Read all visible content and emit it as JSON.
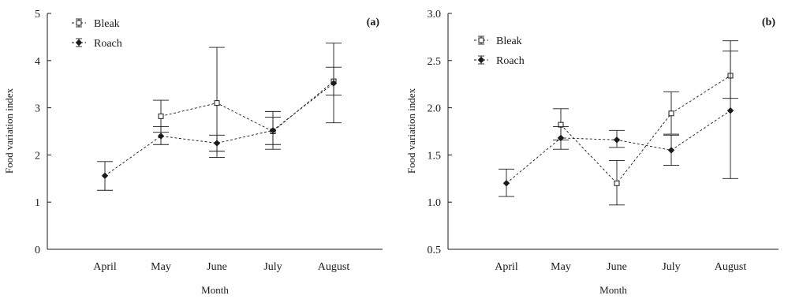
{
  "chart_data": [
    {
      "type": "line",
      "panel_label": "(a)",
      "xlabel": "Month",
      "ylabel": "Food variation index",
      "categories": [
        "April",
        "May",
        "June",
        "July",
        "August"
      ],
      "ylim": [
        0,
        5
      ],
      "yticks": [
        "0",
        "1",
        "2",
        "3",
        "4",
        "5"
      ],
      "grid": false,
      "legend_position": "top-left",
      "series": [
        {
          "name": "Bleak",
          "marker": "open-square",
          "x": [
            "May",
            "June",
            "July",
            "August"
          ],
          "values": [
            2.82,
            3.1,
            2.5,
            3.56
          ],
          "err_low": [
            2.48,
            1.95,
            2.22,
            3.27
          ],
          "err_high": [
            3.16,
            4.28,
            2.8,
            3.86
          ]
        },
        {
          "name": "Roach",
          "marker": "filled-diamond",
          "x": [
            "April",
            "May",
            "June",
            "July",
            "August"
          ],
          "values": [
            1.56,
            2.4,
            2.25,
            2.52,
            3.52
          ],
          "err_low": [
            1.25,
            2.22,
            2.08,
            2.12,
            2.68
          ],
          "err_high": [
            1.86,
            2.6,
            2.42,
            2.92,
            4.37
          ]
        }
      ]
    },
    {
      "type": "line",
      "panel_label": "(b)",
      "xlabel": "Month",
      "ylabel": "Food variation index",
      "categories": [
        "April",
        "May",
        "June",
        "July",
        "August"
      ],
      "ylim": [
        0.5,
        3.0
      ],
      "yticks": [
        "0.5",
        "1.0",
        "1.5",
        "2.0",
        "2.5",
        "3.0"
      ],
      "grid": false,
      "legend_position": "top-left",
      "series": [
        {
          "name": "Bleak",
          "marker": "open-square",
          "x": [
            "May",
            "June",
            "July",
            "August"
          ],
          "values": [
            1.82,
            1.2,
            1.94,
            2.34
          ],
          "err_low": [
            1.66,
            0.97,
            1.72,
            2.1
          ],
          "err_high": [
            1.99,
            1.44,
            2.17,
            2.6
          ]
        },
        {
          "name": "Roach",
          "marker": "filled-diamond",
          "x": [
            "April",
            "May",
            "June",
            "July",
            "August"
          ],
          "values": [
            1.2,
            1.68,
            1.66,
            1.55,
            1.97
          ],
          "err_low": [
            1.06,
            1.56,
            1.58,
            1.39,
            1.25
          ],
          "err_high": [
            1.35,
            1.8,
            1.76,
            1.71,
            2.71
          ]
        }
      ]
    }
  ]
}
